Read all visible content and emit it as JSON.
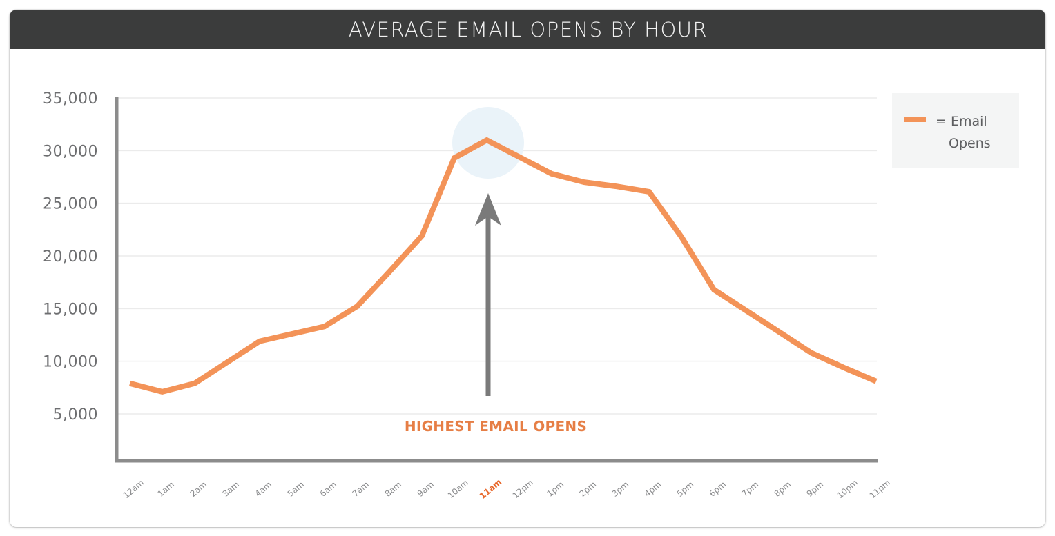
{
  "header": {
    "title": "AVERAGE EMAIL OPENS BY HOUR"
  },
  "legend": {
    "line1": "= Email",
    "line2": "Opens",
    "color": "#f39358"
  },
  "annotation": {
    "text": "HIGHEST EMAIL OPENS",
    "target": "11am",
    "color": "#e67e45"
  },
  "colors": {
    "line": "#f39358",
    "axis": "#8c8c8c",
    "grid": "#ebebeb",
    "highlight_circle": "#eaf3f9",
    "arrow": "#7a7a7a",
    "header_bg": "#3b3c3c",
    "highlight_tick": "#e8692d"
  },
  "chart_data": {
    "type": "line",
    "title": "AVERAGE EMAIL OPENS BY HOUR",
    "xlabel": "",
    "ylabel": "",
    "categories": [
      "12am",
      "1am",
      "2am",
      "3am",
      "4am",
      "5am",
      "6am",
      "7am",
      "8am",
      "9am",
      "10am",
      "11am",
      "12pm",
      "1pm",
      "2pm",
      "3pm",
      "4pm",
      "5pm",
      "6pm",
      "7pm",
      "8pm",
      "9pm",
      "10pm",
      "11pm"
    ],
    "series": [
      {
        "name": "Email Opens",
        "values": [
          7900,
          7100,
          7900,
          9900,
          11900,
          12600,
          13300,
          15200,
          18500,
          21900,
          29300,
          31000,
          29400,
          27800,
          27000,
          26600,
          26100,
          21800,
          16800,
          14800,
          12800,
          10800,
          9400,
          8100
        ]
      }
    ],
    "values_note": "Approximate: estimated from pixel positions against gridlines; no data labels are shown",
    "yticks": [
      "5,000",
      "10,000",
      "15,000",
      "20,000",
      "25,000",
      "30,000",
      "35,000"
    ],
    "ylim": [
      0,
      35000
    ],
    "grid": true,
    "legend_position": "right",
    "highlight": {
      "category": "11am",
      "label": "HIGHEST EMAIL OPENS"
    }
  }
}
